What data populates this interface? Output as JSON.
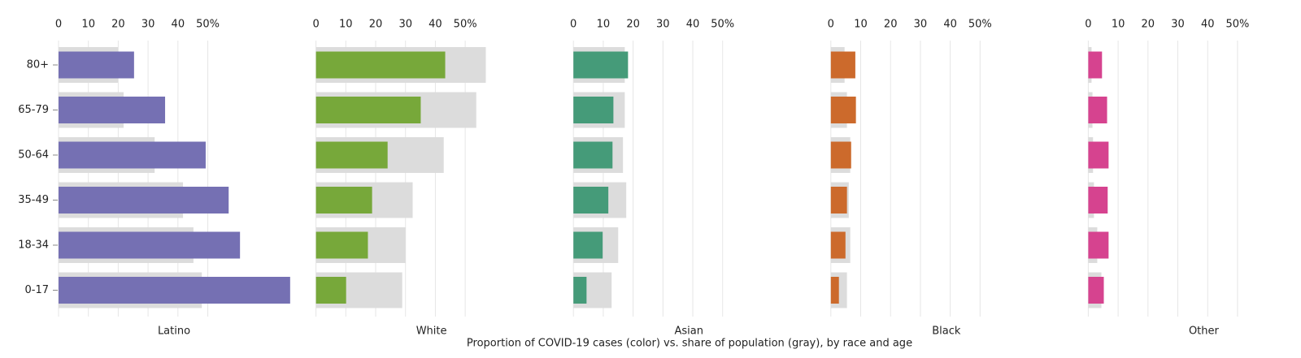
{
  "chart_data": {
    "type": "bar",
    "orientation": "horizontal",
    "title": "Proportion of COVID-19 cases (color) vs. share of population (gray), by race and age",
    "categories": [
      "80+",
      "65-79",
      "50-64",
      "35-49",
      "18-34",
      "0-17"
    ],
    "xlim": [
      0,
      78
    ],
    "xticks": [
      0,
      10,
      20,
      30,
      40,
      {
        "value": 50,
        "label": "50%"
      }
    ],
    "grid": true,
    "population_color": "#dcdcdc",
    "panels": [
      {
        "name": "Latino",
        "color": "#7570b3",
        "values": [
          25.3,
          35.7,
          49.3,
          57,
          60.8,
          77.6
        ],
        "population": [
          19.9,
          21.8,
          32.2,
          41.7,
          45.2,
          48
        ]
      },
      {
        "name": "White",
        "color": "#77a83a",
        "values": [
          43.3,
          35.1,
          24,
          18.8,
          17.4,
          10.1
        ],
        "population": [
          56.9,
          53.7,
          42.8,
          32.4,
          30,
          28.9
        ]
      },
      {
        "name": "Asian",
        "color": "#459b79",
        "values": [
          18.3,
          13.4,
          13.1,
          11.7,
          9.8,
          4.4
        ],
        "population": [
          17.2,
          17.2,
          16.6,
          17.7,
          15,
          12.8
        ]
      },
      {
        "name": "Black",
        "color": "#cc6a2c",
        "values": [
          8.2,
          8.4,
          6.8,
          5.4,
          4.9,
          2.7
        ],
        "population": [
          4.6,
          5.4,
          6.5,
          6,
          6.5,
          5.4
        ]
      },
      {
        "name": "Other",
        "color": "#d6438f",
        "values": [
          4.6,
          6.3,
          6.8,
          6.5,
          6.8,
          5.2
        ],
        "population": [
          1.1,
          1.4,
          1.6,
          1.9,
          3,
          4.4
        ]
      }
    ]
  }
}
